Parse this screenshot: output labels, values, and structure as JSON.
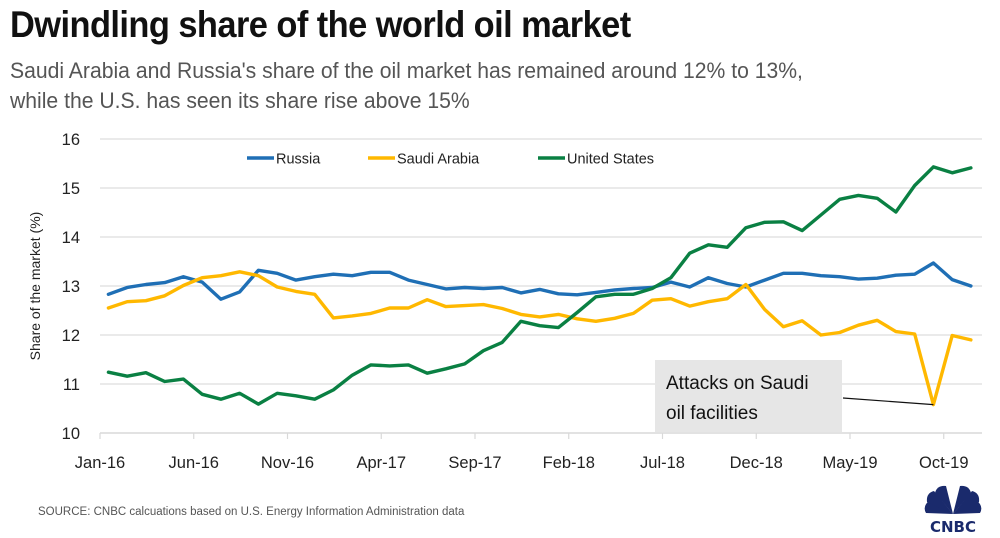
{
  "header": {
    "title": "Dwindling share of the world oil market",
    "subtitle_line1": "Saudi Arabia and Russia's share of the oil market has remained around 12% to 13%,",
    "subtitle_line2": "while the U.S. has seen its share rise above 15%"
  },
  "footer": {
    "source": "SOURCE: CNBC calcuations based on U.S. Energy Information Administration data",
    "logo_text": "CNBC",
    "logo_icon": "cnbc-peacock-logo"
  },
  "chart_data": {
    "type": "line",
    "title": "Dwindling share of the world oil market",
    "xlabel": "",
    "ylabel": "Share of the market (%)",
    "ylim": [
      10,
      16
    ],
    "yticks": [
      "10",
      "11",
      "12",
      "13",
      "14",
      "15",
      "16"
    ],
    "grid": true,
    "legend_position": "top",
    "x": [
      "Jan-16",
      "Feb-16",
      "Mar-16",
      "Apr-16",
      "May-16",
      "Jun-16",
      "Jul-16",
      "Aug-16",
      "Sep-16",
      "Oct-16",
      "Nov-16",
      "Dec-16",
      "Jan-17",
      "Feb-17",
      "Mar-17",
      "Apr-17",
      "May-17",
      "Jun-17",
      "Jul-17",
      "Aug-17",
      "Sep-17",
      "Oct-17",
      "Nov-17",
      "Dec-17",
      "Jan-18",
      "Feb-18",
      "Mar-18",
      "Apr-18",
      "May-18",
      "Jun-18",
      "Jul-18",
      "Aug-18",
      "Sep-18",
      "Oct-18",
      "Nov-18",
      "Dec-18",
      "Jan-19",
      "Feb-19",
      "Mar-19",
      "Apr-19",
      "May-19",
      "Jun-19",
      "Jul-19",
      "Aug-19",
      "Sep-19",
      "Oct-19",
      "Nov-19"
    ],
    "xtick_labels": [
      "Jan-16",
      "Jun-16",
      "Nov-16",
      "Apr-17",
      "Sep-17",
      "Feb-18",
      "Jul-18",
      "Dec-18",
      "May-19",
      "Oct-19"
    ],
    "series": [
      {
        "name": "Russia",
        "color": "#1f6fb5",
        "values": [
          12.83,
          12.97,
          13.03,
          13.07,
          13.19,
          13.08,
          12.73,
          12.88,
          13.32,
          13.26,
          13.12,
          13.19,
          13.24,
          13.21,
          13.28,
          13.28,
          13.12,
          13.03,
          12.94,
          12.97,
          12.95,
          12.97,
          12.86,
          12.93,
          12.84,
          12.82,
          12.87,
          12.92,
          12.95,
          12.97,
          13.08,
          12.98,
          13.17,
          13.05,
          12.98,
          13.12,
          13.26,
          13.26,
          13.21,
          13.19,
          13.14,
          13.16,
          13.22,
          13.24,
          13.47,
          13.13,
          13.0
        ]
      },
      {
        "name": "Saudi Arabia",
        "color": "#ffb800",
        "values": [
          12.55,
          12.68,
          12.7,
          12.8,
          13.01,
          13.17,
          13.21,
          13.29,
          13.21,
          12.98,
          12.89,
          12.83,
          12.35,
          12.39,
          12.44,
          12.55,
          12.55,
          12.72,
          12.58,
          12.6,
          12.62,
          12.54,
          12.42,
          12.37,
          12.42,
          12.33,
          12.28,
          12.34,
          12.44,
          12.71,
          12.74,
          12.59,
          12.68,
          12.74,
          13.03,
          12.52,
          12.17,
          12.29,
          12.0,
          12.05,
          12.2,
          12.3,
          12.07,
          12.02,
          10.58,
          11.99,
          11.9
        ]
      },
      {
        "name": "United States",
        "color": "#0a8043",
        "values": [
          11.24,
          11.16,
          11.23,
          11.05,
          11.1,
          10.79,
          10.69,
          10.81,
          10.59,
          10.81,
          10.76,
          10.69,
          10.88,
          11.18,
          11.39,
          11.37,
          11.39,
          11.22,
          11.31,
          11.41,
          11.68,
          11.85,
          12.28,
          12.19,
          12.15,
          12.46,
          12.78,
          12.83,
          12.83,
          12.95,
          13.17,
          13.67,
          13.84,
          13.79,
          14.19,
          14.3,
          14.31,
          14.13,
          14.45,
          14.77,
          14.85,
          14.79,
          14.51,
          15.05,
          15.43,
          15.31,
          15.41
        ]
      }
    ],
    "annotations": [
      {
        "text_line1": "Attacks on Saudi",
        "text_line2": "oil facilities",
        "series": "Saudi Arabia",
        "x": "Sep-19",
        "y": 10.58
      }
    ]
  }
}
